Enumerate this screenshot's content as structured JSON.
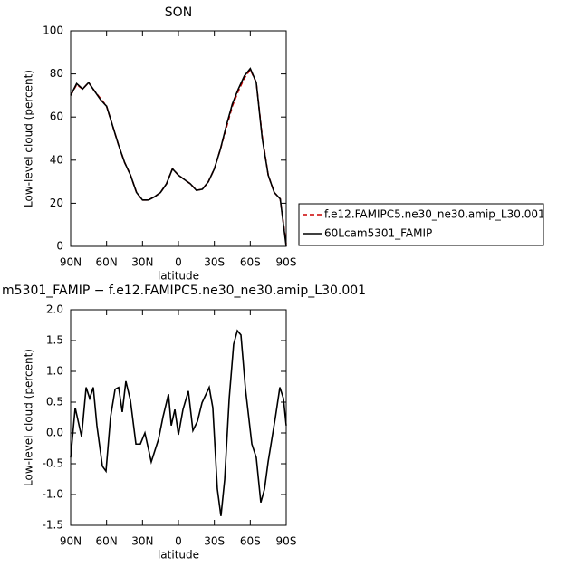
{
  "chart_data": [
    {
      "type": "line",
      "title": "SON",
      "xlabel": "latitude",
      "ylabel": "Low-level cloud (percent)",
      "x": [
        90,
        85,
        80,
        75,
        70,
        65,
        60,
        55,
        50,
        45,
        40,
        35,
        30,
        25,
        20,
        15,
        10,
        5,
        0,
        -5,
        -10,
        -15,
        -20,
        -25,
        -30,
        -35,
        -40,
        -45,
        -50,
        -55,
        -60,
        -65,
        -70,
        -75,
        -80,
        -85,
        -90
      ],
      "series": [
        {
          "name": "f.e12.FAMIPC5.ne30_ne30.amip_L30.001",
          "color": "#cc0000",
          "linestyle": "dashed",
          "values": [
            70,
            75,
            73,
            76,
            72,
            68.5,
            65,
            56,
            47,
            39,
            33,
            25,
            21.5,
            21.5,
            23,
            25,
            29,
            36,
            33,
            31,
            29,
            26,
            26.5,
            30,
            36,
            45,
            55,
            65,
            72,
            78,
            82,
            76,
            51,
            33,
            25,
            22,
            1
          ]
        },
        {
          "name": "60Lcam5301_FAMIP",
          "color": "#000000",
          "linestyle": "solid",
          "values": [
            70,
            75.5,
            73,
            76,
            72,
            68,
            65,
            56,
            47,
            39,
            33,
            25,
            21.5,
            21.5,
            23,
            25,
            29,
            36,
            33,
            31,
            29,
            26,
            26.5,
            30,
            36,
            45,
            56,
            66,
            73,
            79,
            82.5,
            76,
            50,
            33,
            25,
            22,
            0
          ]
        }
      ],
      "xlim": [
        90,
        -90
      ],
      "xticks": [
        {
          "value": 90,
          "label": "90N"
        },
        {
          "value": 60,
          "label": "60N"
        },
        {
          "value": 30,
          "label": "30N"
        },
        0,
        {
          "value": -30,
          "label": "30S"
        },
        {
          "value": -60,
          "label": "60S"
        },
        {
          "value": -90,
          "label": "90S"
        }
      ],
      "ylim": [
        0,
        100
      ],
      "yticks": [
        0,
        20,
        40,
        60,
        80,
        100
      ],
      "legend": "right"
    },
    {
      "type": "line",
      "title": "m5301_FAMIP − f.e12.FAMIPC5.ne30_ne30.amip_L30.001",
      "xlabel": "latitude",
      "ylabel": "Low-level cloud (percent)",
      "x": [
        90,
        86.2,
        80.9,
        77.1,
        74.1,
        71.1,
        68.1,
        63.5,
        60.5,
        56.7,
        52.9,
        49.9,
        46.9,
        43.9,
        40.1,
        35.5,
        31.8,
        28.0,
        22.7,
        16.6,
        12.9,
        8.3,
        6.0,
        3.0,
        0,
        -3.8,
        -8.3,
        -12.1,
        -15.9,
        -19.7,
        -25.7,
        -28.7,
        -32.5,
        -35.5,
        -38.6,
        -42.4,
        -46.1,
        -49.2,
        -52.2,
        -56.0,
        -61.3,
        -65.0,
        -68.8,
        -71.9,
        -74.9,
        -81.0,
        -84.7,
        -87.7,
        -90
      ],
      "series": [
        {
          "color": "#000000",
          "linestyle": "solid",
          "values": [
            -0.4,
            0.41,
            -0.06,
            0.74,
            0.56,
            0.74,
            0.12,
            -0.54,
            -0.62,
            0.26,
            0.71,
            0.74,
            0.34,
            0.84,
            0.53,
            -0.18,
            -0.18,
            0.0,
            -0.47,
            -0.1,
            0.26,
            0.63,
            0.12,
            0.38,
            -0.03,
            0.38,
            0.68,
            0.04,
            0.19,
            0.49,
            0.74,
            0.41,
            -0.91,
            -1.35,
            -0.76,
            0.56,
            1.44,
            1.66,
            1.59,
            0.71,
            -0.18,
            -0.4,
            -1.13,
            -0.91,
            -0.47,
            0.26,
            0.74,
            0.56,
            0.12
          ]
        }
      ],
      "xlim": [
        90,
        -90
      ],
      "xticks": [
        {
          "value": 90,
          "label": "90N"
        },
        {
          "value": 60,
          "label": "60N"
        },
        {
          "value": 30,
          "label": "30N"
        },
        0,
        {
          "value": -30,
          "label": "30S"
        },
        {
          "value": -60,
          "label": "60S"
        },
        {
          "value": -90,
          "label": "90S"
        }
      ],
      "ylim": [
        -1.5,
        2.0
      ],
      "yticks": [
        {
          "value": 2,
          "label": "2.0"
        },
        1.5,
        {
          "value": 1,
          "label": "1.0"
        },
        0.5,
        {
          "value": 0,
          "label": "0.0"
        },
        -0.5,
        {
          "value": -1,
          "label": "-1.0"
        },
        -1.5
      ]
    }
  ]
}
